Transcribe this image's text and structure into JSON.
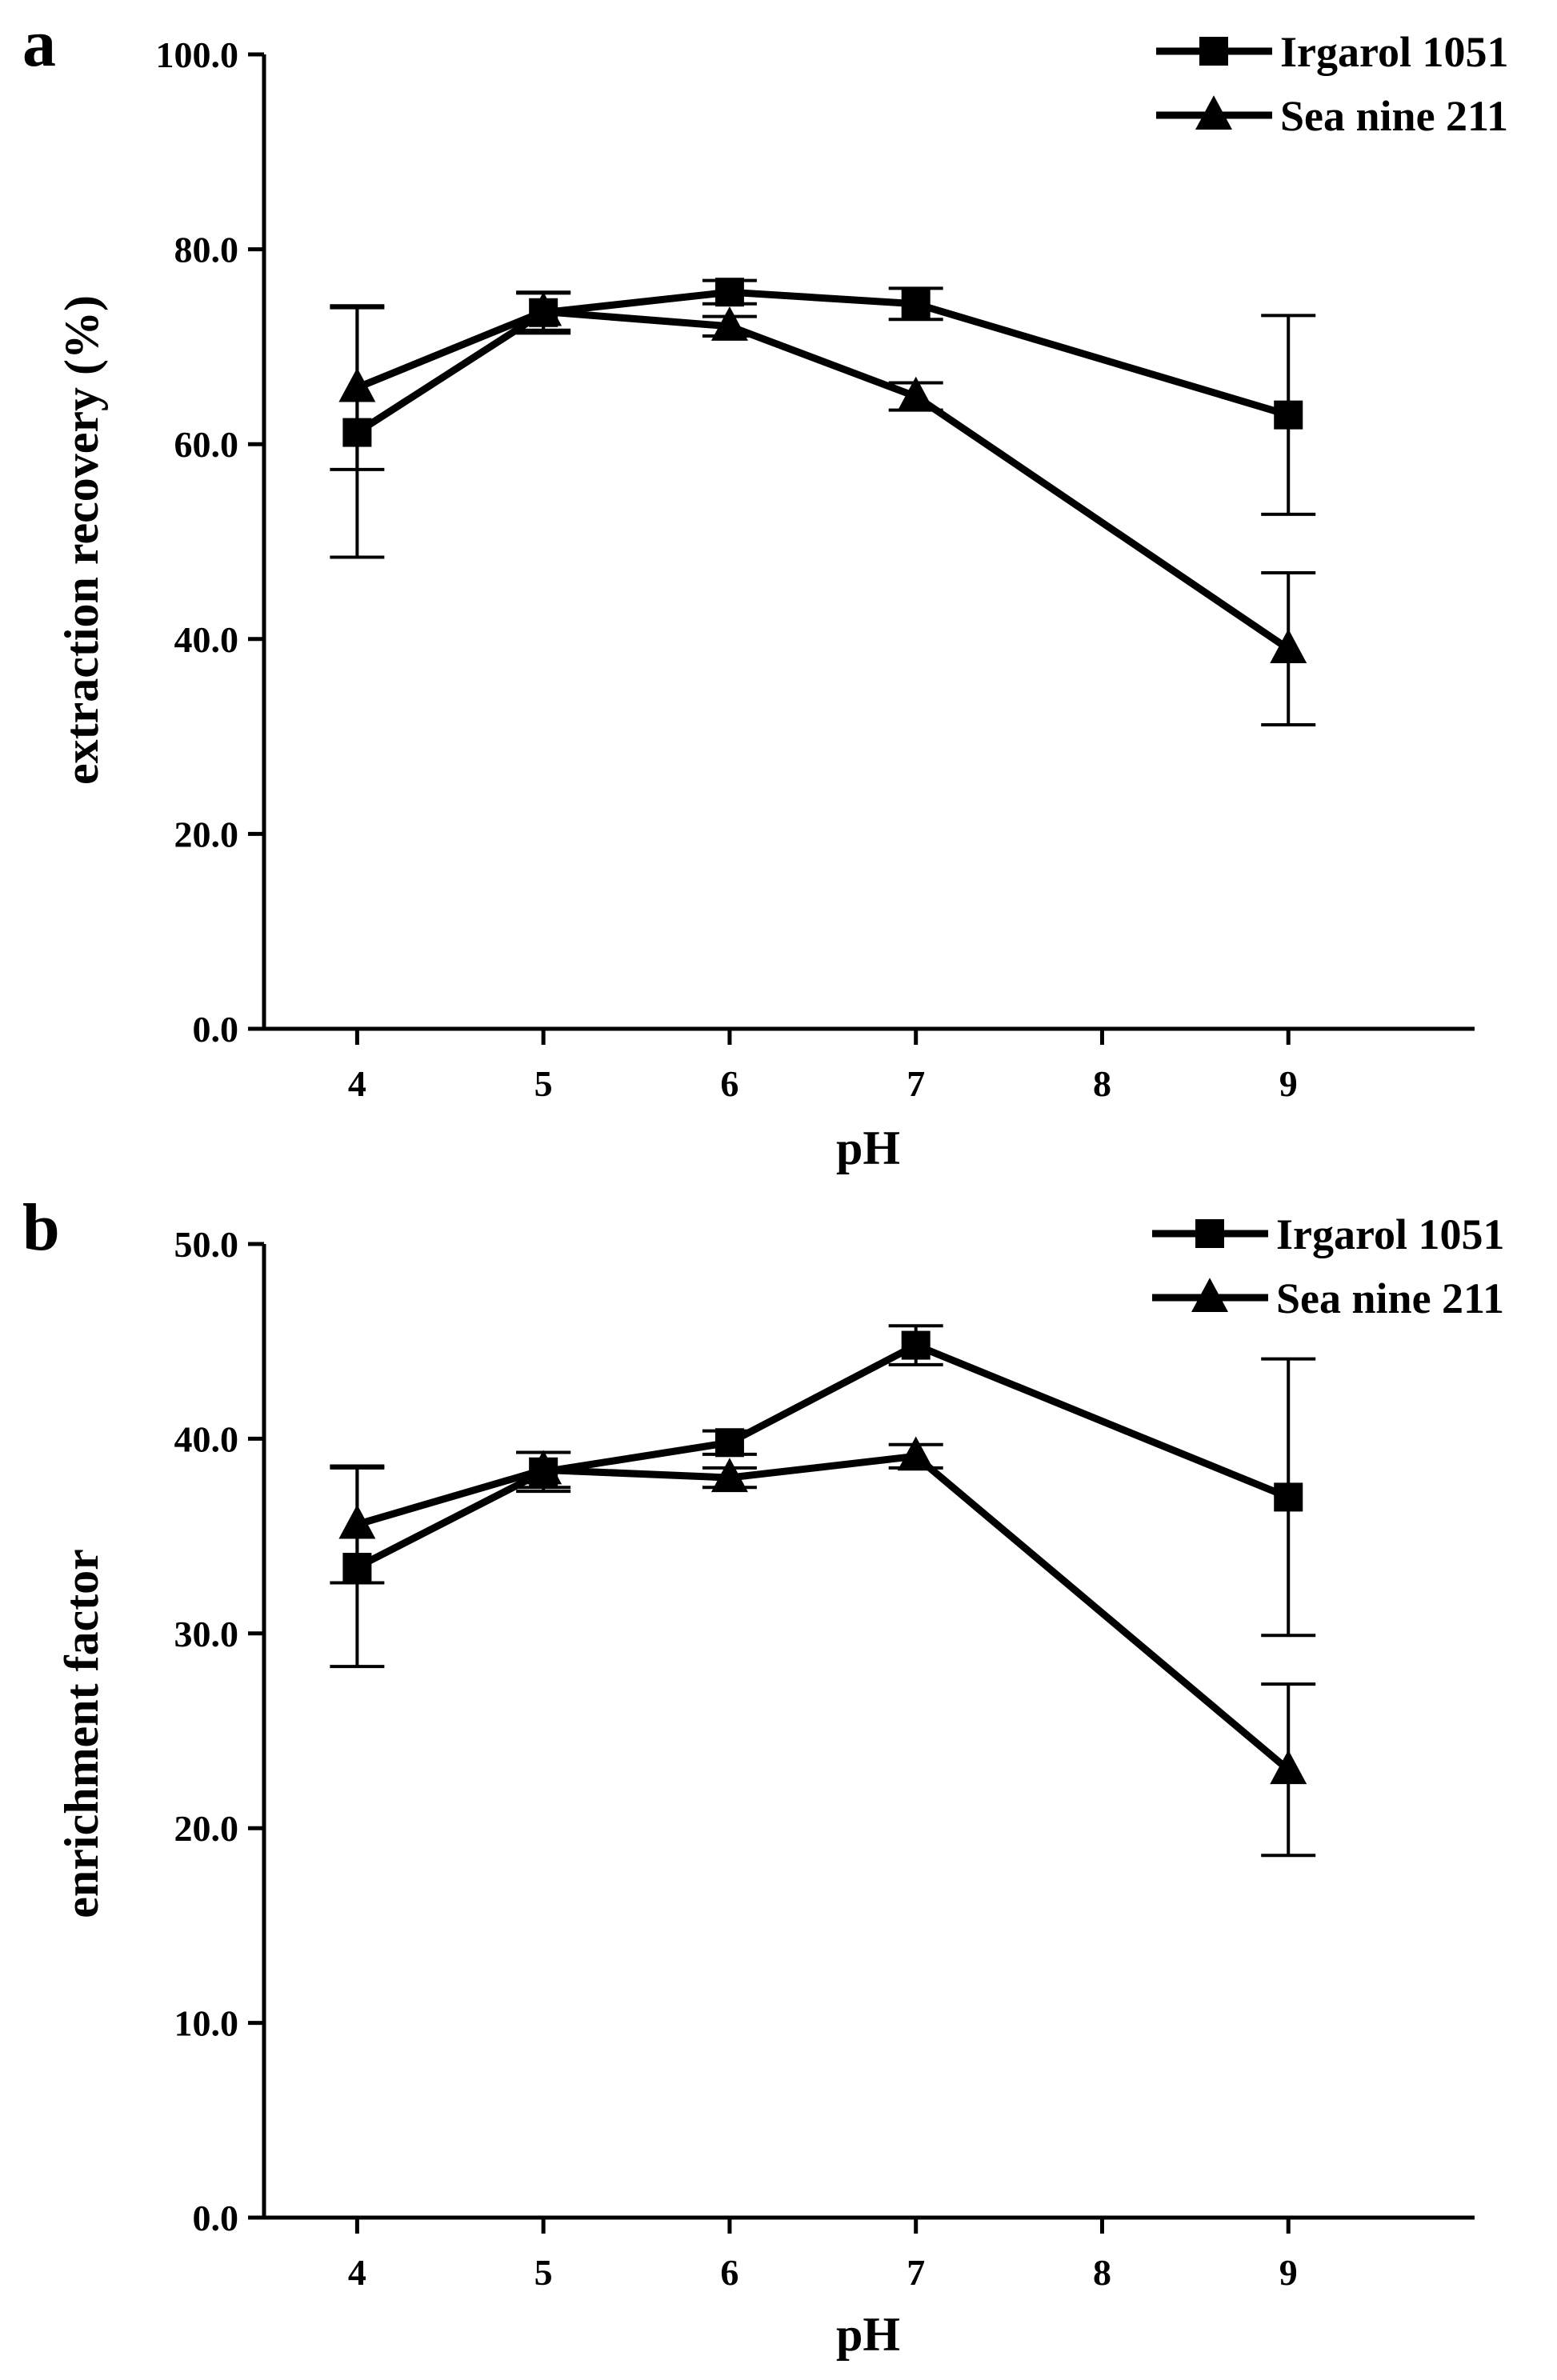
{
  "chart_data": [
    {
      "type": "line",
      "panel_label": "a",
      "xlabel": "pH",
      "ylabel": "extraction recovery (%)",
      "xlim": [
        3.5,
        10
      ],
      "ylim": [
        0,
        100
      ],
      "xticks": [
        4,
        5,
        6,
        7,
        8,
        9
      ],
      "xtick_labels": [
        "4",
        "5",
        "6",
        "7",
        "8",
        "9"
      ],
      "yticks": [
        0,
        20,
        40,
        60,
        80,
        100
      ],
      "ytick_labels": [
        "0.0",
        "20.0",
        "40.0",
        "60.0",
        "80.0",
        "100.0"
      ],
      "legend_position": "top-right",
      "series": [
        {
          "name": "Irgarol 1051",
          "marker": "square",
          "x": [
            4,
            5,
            6,
            7,
            9
          ],
          "y": [
            61.2,
            73.5,
            75.6,
            74.4,
            63.0
          ],
          "err": [
            12.8,
            2.1,
            1.2,
            1.6,
            10.2
          ]
        },
        {
          "name": "Sea nine 211",
          "marker": "triangle",
          "x": [
            4,
            5,
            6,
            7,
            9
          ],
          "y": [
            65.8,
            73.6,
            72.1,
            64.9,
            39.0
          ],
          "err": [
            8.4,
            1.9,
            1.0,
            1.4,
            7.8
          ]
        }
      ]
    },
    {
      "type": "line",
      "panel_label": "b",
      "xlabel": "pH",
      "ylabel": "enrichment factor",
      "xlim": [
        3.5,
        10
      ],
      "ylim": [
        0,
        50
      ],
      "xticks": [
        4,
        5,
        6,
        7,
        8,
        9
      ],
      "xtick_labels": [
        "4",
        "5",
        "6",
        "7",
        "8",
        "9"
      ],
      "yticks": [
        0,
        10,
        20,
        30,
        40,
        50
      ],
      "ytick_labels": [
        "0.0",
        "10.0",
        "20.0",
        "30.0",
        "40.0",
        "50.0"
      ],
      "legend_position": "top-right",
      "series": [
        {
          "name": "Irgarol 1051",
          "marker": "square",
          "x": [
            4,
            5,
            6,
            7,
            9
          ],
          "y": [
            33.4,
            38.3,
            39.8,
            44.8,
            37.0
          ],
          "err": [
            5.1,
            1.0,
            0.6,
            1.0,
            7.1
          ]
        },
        {
          "name": "Sea nine 211",
          "marker": "triangle",
          "x": [
            4,
            5,
            6,
            7,
            9
          ],
          "y": [
            35.6,
            38.4,
            38.0,
            39.1,
            23.0
          ],
          "err": [
            3.0,
            0.9,
            0.5,
            0.6,
            4.4
          ]
        }
      ]
    }
  ]
}
